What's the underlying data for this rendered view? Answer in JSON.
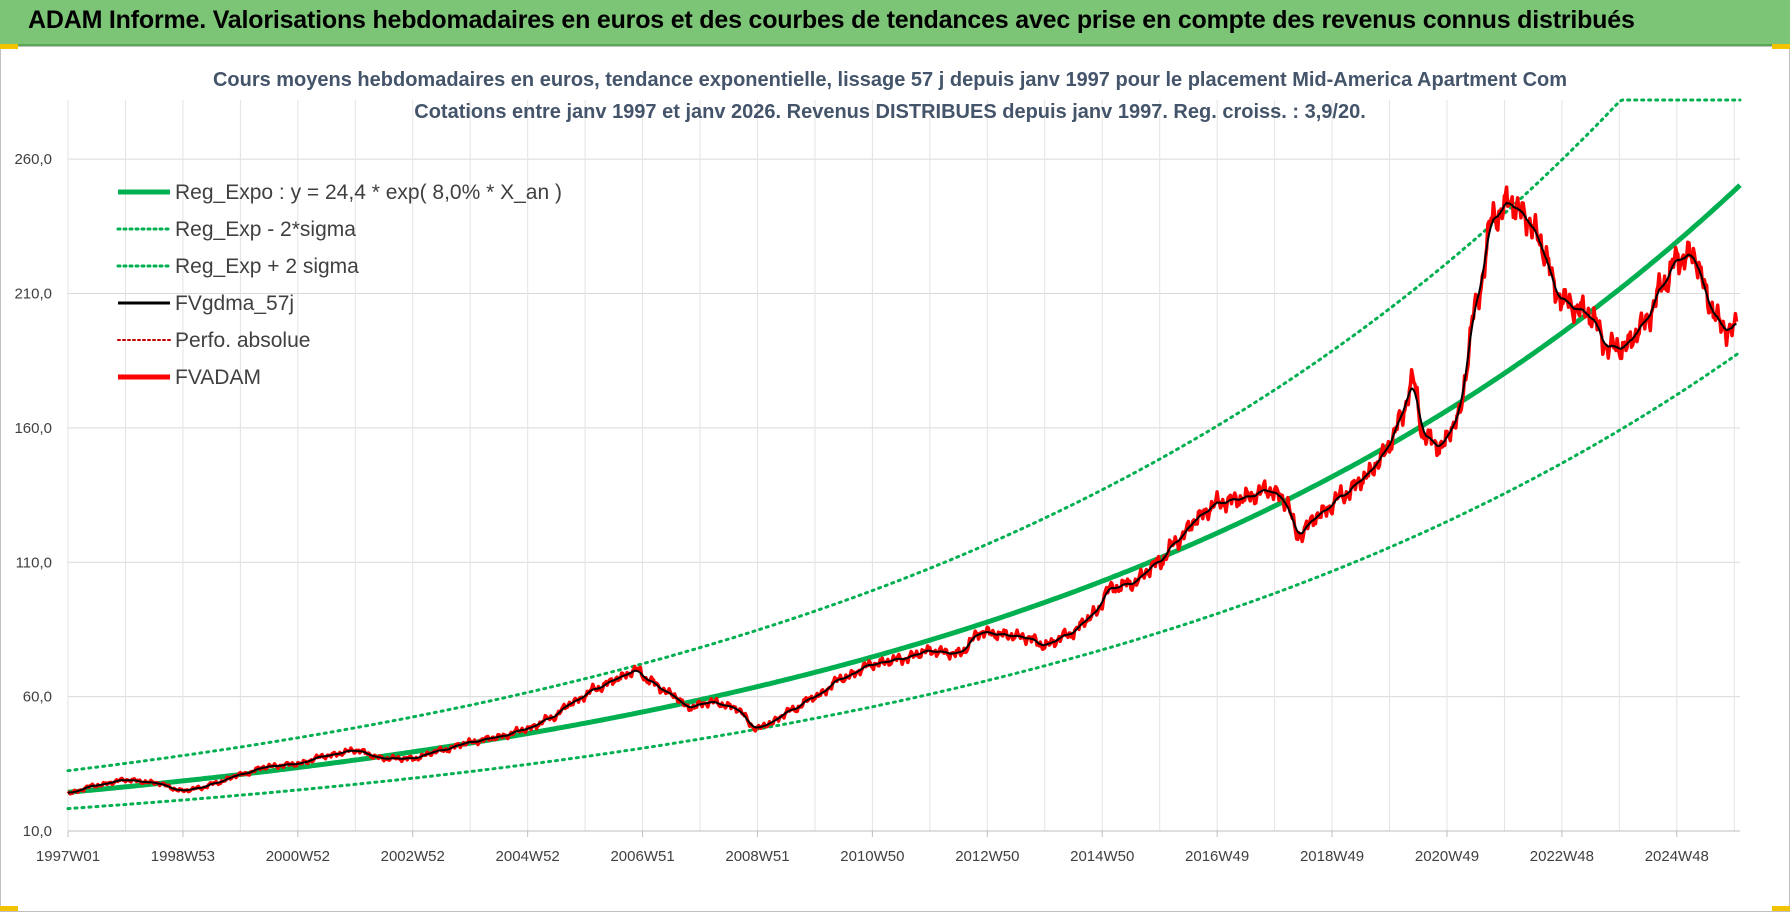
{
  "banner": {
    "title": "ADAM Informe. Valorisations hebdomadaires en euros et des courbes de tendances avec prise en compte des revenus connus distribués"
  },
  "chart_data": {
    "type": "line",
    "title": "Cours moyens hebdomadaires en euros, tendance exponentielle, lissage 57 j depuis janv 1997 pour le placement Mid-America Apartment Com",
    "subtitle": "Cotations entre janv 1997 et janv 2026. Revenus DISTRIBUES depuis janv 1997. Reg. croiss. : 3,9/20.",
    "xlabel": "",
    "ylabel": "",
    "x_range": [
      1997.0,
      2026.1
    ],
    "ylim": [
      10,
      282
    ],
    "y_ticks": [
      10,
      60,
      110,
      160,
      210,
      260
    ],
    "y_tick_labels": [
      "10,0",
      "60,0",
      "110,0",
      "160,0",
      "210,0",
      "260,0"
    ],
    "x_tick_labels": [
      {
        "label": "1997W01",
        "x": 1997.0
      },
      {
        "label": "1998W53",
        "x": 1999.0
      },
      {
        "label": "2000W52",
        "x": 2001.0
      },
      {
        "label": "2002W52",
        "x": 2003.0
      },
      {
        "label": "2004W52",
        "x": 2005.0
      },
      {
        "label": "2006W51",
        "x": 2007.0
      },
      {
        "label": "2008W51",
        "x": 2009.0
      },
      {
        "label": "2010W50",
        "x": 2011.0
      },
      {
        "label": "2012W50",
        "x": 2013.0
      },
      {
        "label": "2014W50",
        "x": 2015.0
      },
      {
        "label": "2016W49",
        "x": 2017.0
      },
      {
        "label": "2018W49",
        "x": 2019.0
      },
      {
        "label": "2020W49",
        "x": 2021.0
      },
      {
        "label": "2022W48",
        "x": 2023.0
      },
      {
        "label": "2024W48",
        "x": 2025.0
      }
    ],
    "grid": true,
    "legend_position": "top-left",
    "regression": {
      "a": 24.4,
      "growth_pct": 8.0,
      "band_factor": 1.33
    },
    "series": [
      {
        "name": "Reg_Expo : y = 24,4 * exp( 8,0% *  X_an )",
        "color": "#00b050",
        "style": "solid-thick",
        "kind": "reg"
      },
      {
        "name": "Reg_Exp - 2*sigma",
        "color": "#00b050",
        "style": "dotted",
        "kind": "reg_low"
      },
      {
        "name": "Reg_Exp + 2 sigma",
        "color": "#00b050",
        "style": "dotted",
        "kind": "reg_high"
      },
      {
        "name": "FVgdma_57j",
        "color": "#000000",
        "style": "solid-thin",
        "kind": "smooth"
      },
      {
        "name": "Perfo. absolue",
        "color": "#c00000",
        "style": "dotted-thin",
        "kind": "perfo"
      },
      {
        "name": "FVADAM",
        "color": "#ff0000",
        "style": "solid-thick",
        "kind": "price",
        "x": [
          1997.0,
          1997.5,
          1998.0,
          1998.5,
          1999.0,
          1999.3,
          1999.6,
          2000.0,
          2000.5,
          2001.0,
          2001.5,
          2002.0,
          2002.5,
          2003.0,
          2003.5,
          2004.0,
          2004.5,
          2005.0,
          2005.4,
          2005.8,
          2006.2,
          2006.6,
          2006.9,
          2007.1,
          2007.5,
          2007.8,
          2008.2,
          2008.6,
          2009.0,
          2009.2,
          2009.6,
          2010.0,
          2010.5,
          2011.0,
          2011.5,
          2012.0,
          2012.5,
          2012.9,
          2013.3,
          2013.7,
          2014.0,
          2014.4,
          2014.9,
          2015.1,
          2015.5,
          2016.0,
          2016.3,
          2016.7,
          2017.0,
          2017.5,
          2017.9,
          2018.2,
          2018.4,
          2018.8,
          2019.2,
          2019.6,
          2019.9,
          2020.2,
          2020.4,
          2020.6,
          2020.9,
          2021.2,
          2021.5,
          2021.8,
          2022.1,
          2022.4,
          2022.7,
          2022.9,
          2023.2,
          2023.5,
          2023.8,
          2024.1,
          2024.4,
          2024.8,
          2025.0,
          2025.3,
          2025.6,
          2025.8,
          2026.05
        ],
        "y": [
          24,
          27,
          29,
          28,
          25,
          26,
          28,
          31,
          34,
          35,
          38,
          40,
          37,
          37,
          40,
          43,
          45,
          48,
          52,
          58,
          63,
          67,
          70,
          66,
          61,
          56,
          58,
          56,
          48,
          50,
          55,
          60,
          67,
          72,
          74,
          77,
          76,
          84,
          83,
          82,
          79,
          83,
          91,
          100,
          102,
          110,
          118,
          127,
          132,
          134,
          137,
          133,
          120,
          128,
          135,
          142,
          150,
          163,
          178,
          157,
          153,
          164,
          205,
          238,
          244,
          238,
          226,
          210,
          205,
          202,
          190,
          190,
          198,
          214,
          223,
          224,
          205,
          197,
          197
        ]
      }
    ]
  }
}
